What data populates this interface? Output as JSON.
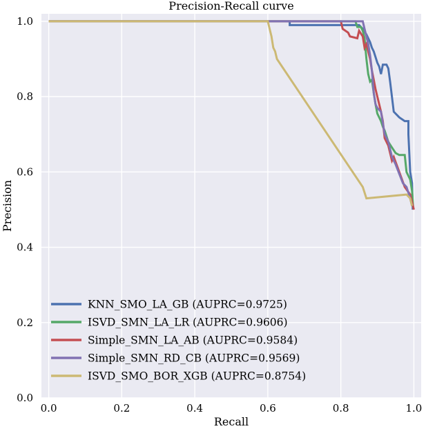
{
  "chart_data": {
    "type": "line",
    "title": "Precision-Recall curve",
    "xlabel": "Recall",
    "ylabel": "Precision",
    "xlim": [
      -0.02,
      1.02
    ],
    "ylim": [
      0.0,
      1.02
    ],
    "x_ticks": [
      0.0,
      0.2,
      0.4,
      0.6,
      0.8,
      1.0
    ],
    "x_tick_labels": [
      "0.0",
      "0.2",
      "0.4",
      "0.6",
      "0.8",
      "1.0"
    ],
    "y_ticks": [
      0.0,
      0.2,
      0.4,
      0.6,
      0.8,
      1.0
    ],
    "y_tick_labels": [
      "0.0",
      "0.2",
      "0.4",
      "0.6",
      "0.8",
      "1.0"
    ],
    "grid": true,
    "legend_position": "lower-left",
    "background_color": "#eaeaf2",
    "series": [
      {
        "name": "KNN_SMO_LA_GB (AUPRC=0.9725)",
        "color": "#4c72b0",
        "points": [
          [
            0.0,
            1.0
          ],
          [
            0.66,
            1.0
          ],
          [
            0.66,
            0.99
          ],
          [
            0.85,
            0.99
          ],
          [
            0.86,
            0.98
          ],
          [
            0.87,
            0.965
          ],
          [
            0.88,
            0.945
          ],
          [
            0.885,
            0.93
          ],
          [
            0.89,
            0.92
          ],
          [
            0.9,
            0.89
          ],
          [
            0.905,
            0.88
          ],
          [
            0.91,
            0.86
          ],
          [
            0.915,
            0.885
          ],
          [
            0.925,
            0.885
          ],
          [
            0.93,
            0.875
          ],
          [
            0.935,
            0.84
          ],
          [
            0.945,
            0.76
          ],
          [
            0.96,
            0.745
          ],
          [
            0.975,
            0.735
          ],
          [
            0.985,
            0.735
          ],
          [
            0.985,
            0.7
          ],
          [
            0.99,
            0.6
          ],
          [
            0.995,
            0.57
          ],
          [
            0.997,
            0.5
          ]
        ]
      },
      {
        "name": "ISVD_SMN_LA_LR (AUPRC=0.9606)",
        "color": "#55a868",
        "points": [
          [
            0.0,
            1.0
          ],
          [
            0.84,
            1.0
          ],
          [
            0.845,
            0.985
          ],
          [
            0.855,
            0.985
          ],
          [
            0.86,
            0.975
          ],
          [
            0.865,
            0.955
          ],
          [
            0.87,
            0.9
          ],
          [
            0.875,
            0.86
          ],
          [
            0.88,
            0.84
          ],
          [
            0.885,
            0.845
          ],
          [
            0.89,
            0.81
          ],
          [
            0.895,
            0.78
          ],
          [
            0.9,
            0.755
          ],
          [
            0.91,
            0.735
          ],
          [
            0.915,
            0.72
          ],
          [
            0.92,
            0.71
          ],
          [
            0.93,
            0.68
          ],
          [
            0.94,
            0.665
          ],
          [
            0.95,
            0.65
          ],
          [
            0.96,
            0.645
          ],
          [
            0.975,
            0.645
          ],
          [
            0.98,
            0.6
          ],
          [
            0.99,
            0.58
          ],
          [
            0.995,
            0.55
          ],
          [
            0.998,
            0.505
          ]
        ]
      },
      {
        "name": "Simple_SMN_LA_AB (AUPRC=0.9584)",
        "color": "#c44e52",
        "points": [
          [
            0.0,
            1.0
          ],
          [
            0.8,
            1.0
          ],
          [
            0.805,
            0.98
          ],
          [
            0.82,
            0.97
          ],
          [
            0.825,
            0.96
          ],
          [
            0.845,
            0.955
          ],
          [
            0.85,
            0.975
          ],
          [
            0.86,
            0.96
          ],
          [
            0.865,
            0.93
          ],
          [
            0.87,
            0.94
          ],
          [
            0.875,
            0.92
          ],
          [
            0.88,
            0.9
          ],
          [
            0.885,
            0.87
          ],
          [
            0.89,
            0.845
          ],
          [
            0.895,
            0.82
          ],
          [
            0.9,
            0.8
          ],
          [
            0.905,
            0.78
          ],
          [
            0.91,
            0.76
          ],
          [
            0.915,
            0.735
          ],
          [
            0.92,
            0.69
          ],
          [
            0.93,
            0.67
          ],
          [
            0.94,
            0.63
          ],
          [
            0.945,
            0.64
          ],
          [
            0.96,
            0.6
          ],
          [
            0.975,
            0.56
          ],
          [
            0.99,
            0.54
          ],
          [
            0.995,
            0.52
          ],
          [
            1.0,
            0.5
          ]
        ]
      },
      {
        "name": "Simple_SMN_RD_CB (AUPRC=0.9569)",
        "color": "#8172b2",
        "points": [
          [
            0.0,
            1.0
          ],
          [
            0.86,
            1.0
          ],
          [
            0.865,
            0.98
          ],
          [
            0.87,
            0.96
          ],
          [
            0.875,
            0.94
          ],
          [
            0.88,
            0.91
          ],
          [
            0.885,
            0.87
          ],
          [
            0.89,
            0.81
          ],
          [
            0.895,
            0.78
          ],
          [
            0.9,
            0.77
          ],
          [
            0.91,
            0.76
          ],
          [
            0.915,
            0.73
          ],
          [
            0.92,
            0.7
          ],
          [
            0.93,
            0.68
          ],
          [
            0.94,
            0.64
          ],
          [
            0.95,
            0.62
          ],
          [
            0.96,
            0.595
          ],
          [
            0.97,
            0.57
          ],
          [
            0.98,
            0.56
          ],
          [
            0.99,
            0.53
          ],
          [
            0.995,
            0.51
          ]
        ]
      },
      {
        "name": "ISVD_SMO_BOR_XGB (AUPRC=0.8754)",
        "color": "#ccb974",
        "points": [
          [
            0.0,
            1.0
          ],
          [
            0.6,
            1.0
          ],
          [
            0.605,
            0.98
          ],
          [
            0.61,
            0.96
          ],
          [
            0.615,
            0.93
          ],
          [
            0.62,
            0.92
          ],
          [
            0.625,
            0.9
          ],
          [
            0.86,
            0.56
          ],
          [
            0.87,
            0.53
          ],
          [
            0.98,
            0.54
          ],
          [
            0.99,
            0.53
          ],
          [
            0.995,
            0.51
          ]
        ]
      }
    ]
  }
}
